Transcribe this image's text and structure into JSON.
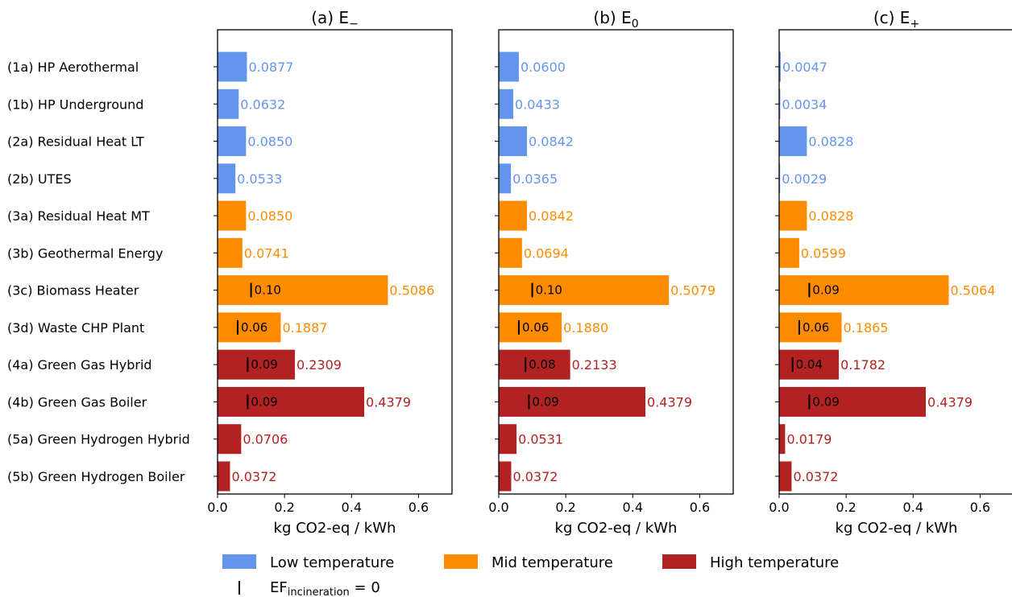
{
  "chart_data": {
    "type": "bar",
    "orientation": "horizontal",
    "categories": [
      "(1a) HP Aerothermal",
      "(1b) HP Underground",
      "(2a) Residual Heat LT",
      "(2b) UTES",
      "(3a) Residual Heat MT",
      "(3b) Geothermal Energy",
      "(3c) Biomass Heater",
      "(3d) Waste CHP Plant",
      "(4a) Green Gas Hybrid",
      "(4b) Green Gas Boiler",
      "(5a) Green Hydrogen Hybrid",
      "(5b) Green Hydrogen Boiler"
    ],
    "category_group": [
      "low",
      "low",
      "low",
      "low",
      "mid",
      "mid",
      "mid",
      "mid",
      "high",
      "high",
      "high",
      "high"
    ],
    "groups": [
      {
        "key": "low",
        "label": "Low temperature",
        "color": "#6495ED"
      },
      {
        "key": "mid",
        "label": "Mid temperature",
        "color": "#FF8C00"
      },
      {
        "key": "high",
        "label": "High temperature",
        "color": "#B22222"
      }
    ],
    "xlabel": "kg CO2-eq / kWh",
    "xlim": [
      0,
      0.7
    ],
    "xticks": [
      "0.0",
      "0.2",
      "0.4",
      "0.6"
    ],
    "xtick_values": [
      0,
      0.2,
      0.4,
      0.6
    ],
    "grid": false,
    "legend_position": "bottom",
    "legend_marker_label": {
      "main": "EF",
      "sub": "incineration",
      "rest": " = 0"
    },
    "panels": [
      {
        "title_main": "(a) E",
        "title_sub": "−",
        "values": [
          0.0877,
          0.0632,
          0.085,
          0.0533,
          0.085,
          0.0741,
          0.5086,
          0.1887,
          0.2309,
          0.4379,
          0.0706,
          0.0372
        ],
        "labels": [
          "0.0877",
          "0.0632",
          "0.0850",
          "0.0533",
          "0.0850",
          "0.0741",
          "0.5086",
          "0.1887",
          "0.2309",
          "0.4379",
          "0.0706",
          "0.0372"
        ],
        "markers": [
          null,
          null,
          null,
          null,
          null,
          null,
          0.1,
          0.06,
          0.09,
          0.09,
          null,
          null
        ],
        "marker_labels": [
          null,
          null,
          null,
          null,
          null,
          null,
          "0.10",
          "0.06",
          "0.09",
          "0.09",
          null,
          null
        ]
      },
      {
        "title_main": "(b) E",
        "title_sub": "0",
        "values": [
          0.06,
          0.0433,
          0.0842,
          0.0365,
          0.0842,
          0.0694,
          0.5079,
          0.188,
          0.2133,
          0.4379,
          0.0531,
          0.0372
        ],
        "labels": [
          "0.0600",
          "0.0433",
          "0.0842",
          "0.0365",
          "0.0842",
          "0.0694",
          "0.5079",
          "0.1880",
          "0.2133",
          "0.4379",
          "0.0531",
          "0.0372"
        ],
        "markers": [
          null,
          null,
          null,
          null,
          null,
          null,
          0.1,
          0.06,
          0.08,
          0.09,
          null,
          null
        ],
        "marker_labels": [
          null,
          null,
          null,
          null,
          null,
          null,
          "0.10",
          "0.06",
          "0.08",
          "0.09",
          null,
          null
        ]
      },
      {
        "title_main": "(c) E",
        "title_sub": "+",
        "values": [
          0.0047,
          0.0034,
          0.0828,
          0.0029,
          0.0828,
          0.0599,
          0.5064,
          0.1865,
          0.1782,
          0.4379,
          0.0179,
          0.0372
        ],
        "labels": [
          "0.0047",
          "0.0034",
          "0.0828",
          "0.0029",
          "0.0828",
          "0.0599",
          "0.5064",
          "0.1865",
          "0.1782",
          "0.4379",
          "0.0179",
          "0.0372"
        ],
        "markers": [
          null,
          null,
          null,
          null,
          null,
          null,
          0.09,
          0.06,
          0.04,
          0.09,
          null,
          null
        ],
        "marker_labels": [
          null,
          null,
          null,
          null,
          null,
          null,
          "0.09",
          "0.06",
          "0.04",
          "0.09",
          null,
          null
        ]
      }
    ]
  }
}
